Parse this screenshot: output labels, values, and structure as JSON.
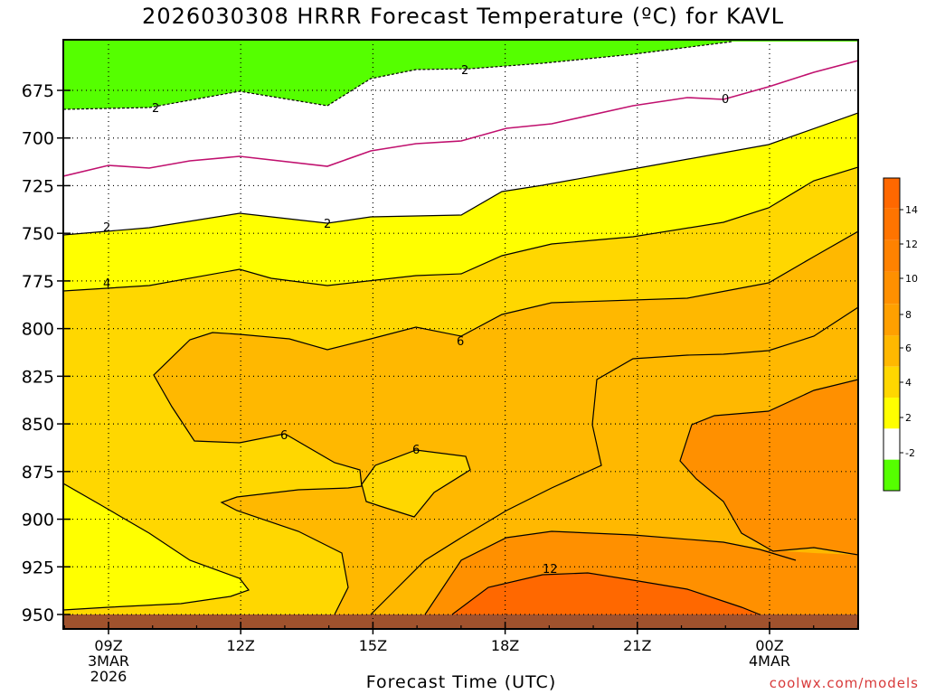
{
  "title": "2026030308 HRRR Forecast Temperature (ºC) for KAVL",
  "xlabel": "Forecast Time (UTC)",
  "credit": "coolwx.com/models",
  "colors": {
    "green": "#55ff00",
    "white": "#ffffff",
    "yellow": "#ffff00",
    "gold": "#ffd700",
    "amber": "#ffb800",
    "orange": "#ff9000",
    "dark_orange": "#ff6800",
    "ground": "#a0522d",
    "zero_line": "#c0106e"
  },
  "chart_data": {
    "type": "contour",
    "y_axis": {
      "ticks": [
        "675",
        "700",
        "725",
        "750",
        "775",
        "800",
        "825",
        "850",
        "875",
        "900",
        "925",
        "950"
      ],
      "direction": "pressure decreasing upward"
    },
    "x_axis": {
      "ticks": [
        {
          "lines": [
            "09Z",
            "3MAR",
            "2026"
          ]
        },
        {
          "lines": [
            "12Z"
          ]
        },
        {
          "lines": [
            "15Z"
          ]
        },
        {
          "lines": [
            "18Z"
          ]
        },
        {
          "lines": [
            "21Z"
          ]
        },
        {
          "lines": [
            "00Z",
            "4MAR"
          ]
        }
      ]
    },
    "colorbar": {
      "labels": [
        "14",
        "12",
        "10",
        "8",
        "6",
        "4",
        "2",
        "-2"
      ],
      "bands": [
        {
          "range": "12 to 16",
          "color": "#ff6800"
        },
        {
          "range": "8 to 12",
          "color": "#ff9000"
        },
        {
          "range": "4 to 8",
          "color": "#ffb800"
        },
        {
          "range": "2 to 4",
          "color": "#ffff00"
        },
        {
          "range": "-2 to 2",
          "color": "#ffffff"
        },
        {
          "range": "below -2",
          "color": "#55ff00"
        }
      ]
    },
    "contour_labels": [
      {
        "text": "2",
        "where": "upper-left"
      },
      {
        "text": "2",
        "where": "top-middle"
      },
      {
        "text": "0",
        "where": "upper-right"
      },
      {
        "text": "2",
        "where": "left"
      },
      {
        "text": "2",
        "where": "middle"
      },
      {
        "text": "4",
        "where": "left"
      },
      {
        "text": "6",
        "where": "middle"
      },
      {
        "text": "6",
        "where": "center-left"
      },
      {
        "text": "6",
        "where": "center"
      },
      {
        "text": "12",
        "where": "lower-right"
      }
    ],
    "grid": "dotted",
    "ground_below": "950"
  }
}
